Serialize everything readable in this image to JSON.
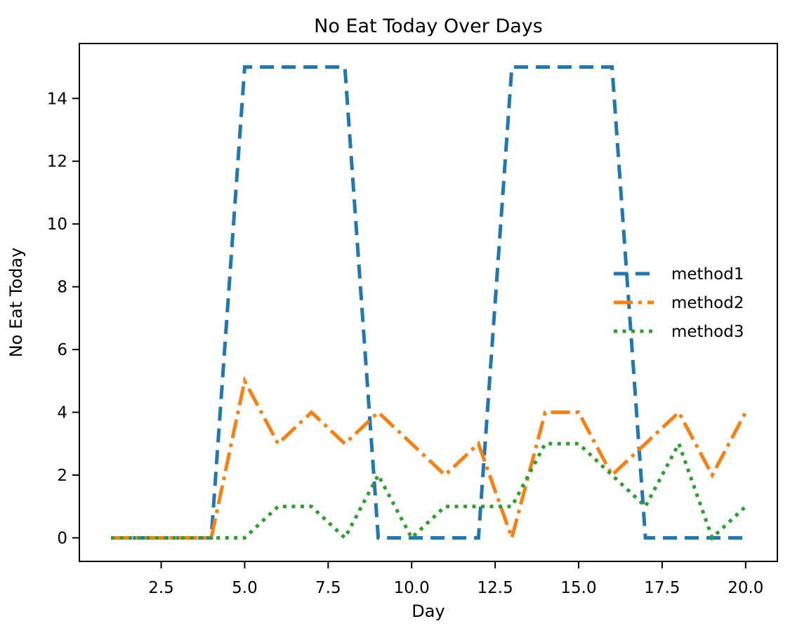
{
  "chart_data": {
    "type": "line",
    "title": "No Eat Today Over Days",
    "xlabel": "Day",
    "ylabel": "No Eat Today",
    "x": [
      1,
      2,
      3,
      4,
      5,
      6,
      7,
      8,
      9,
      10,
      11,
      12,
      13,
      14,
      15,
      16,
      17,
      18,
      19,
      20
    ],
    "series": [
      {
        "name": "method1",
        "color": "#1f77b4",
        "linestyle": "dashed",
        "values": [
          0,
          0,
          0,
          0,
          15,
          15,
          15,
          15,
          0,
          0,
          0,
          0,
          15,
          15,
          15,
          15,
          0,
          0,
          0,
          0
        ]
      },
      {
        "name": "method2",
        "color": "#ff7f0e",
        "linestyle": "dashdot",
        "values": [
          0,
          0,
          0,
          0,
          5,
          3,
          4,
          3,
          4,
          3,
          2,
          3,
          0,
          4,
          4,
          2,
          3,
          4,
          2,
          4
        ]
      },
      {
        "name": "method3",
        "color": "#2ca02c",
        "linestyle": "dotted",
        "values": [
          0,
          0,
          0,
          0,
          0,
          1,
          1,
          0,
          2,
          0,
          1,
          1,
          1,
          3,
          3,
          2,
          1,
          3,
          0,
          1
        ]
      }
    ],
    "xlim": [
      0.05,
      20.95
    ],
    "ylim": [
      -0.75,
      15.75
    ],
    "xticks": {
      "values": [
        2.5,
        5,
        7.5,
        10,
        12.5,
        15,
        17.5,
        20
      ],
      "labels": [
        "2.5",
        "5.0",
        "7.5",
        "10.0",
        "12.5",
        "15.0",
        "17.5",
        "20.0"
      ]
    },
    "yticks": {
      "values": [
        0,
        2,
        4,
        6,
        8,
        10,
        12,
        14
      ],
      "labels": [
        "0",
        "2",
        "4",
        "6",
        "8",
        "10",
        "12",
        "14"
      ]
    },
    "grid": false,
    "legend": {
      "position": "center-right",
      "frame": false,
      "entries": [
        "method1",
        "method2",
        "method3"
      ]
    }
  }
}
